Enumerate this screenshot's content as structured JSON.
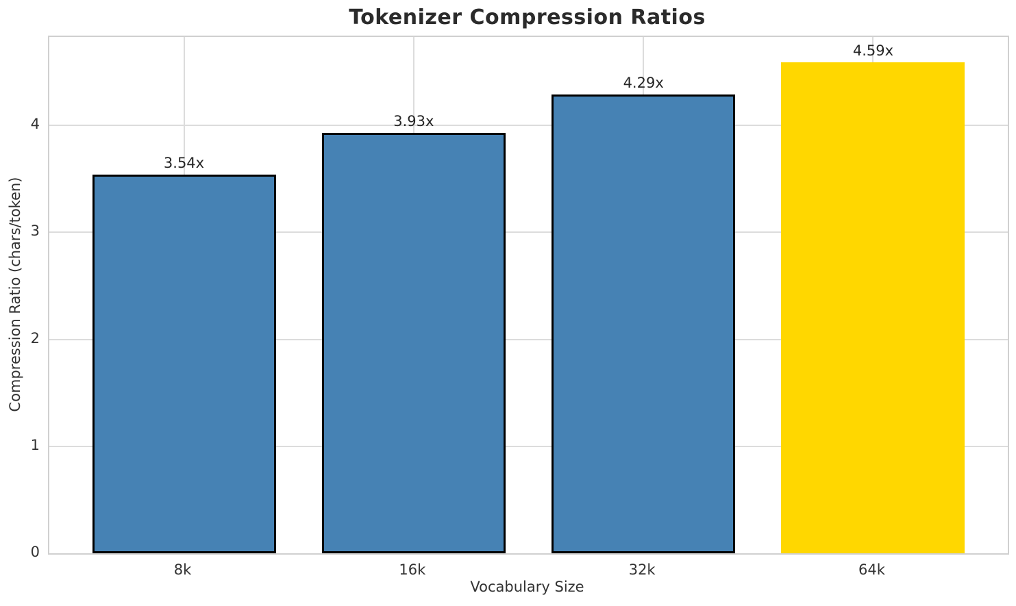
{
  "chart_data": {
    "type": "bar",
    "title": "Tokenizer Compression Ratios",
    "xlabel": "Vocabulary Size",
    "ylabel": "Compression Ratio (chars/token)",
    "categories": [
      "8k",
      "16k",
      "32k",
      "64k"
    ],
    "values": [
      3.54,
      3.93,
      4.29,
      4.59
    ],
    "bar_labels": [
      "3.54x",
      "3.93x",
      "4.29x",
      "4.59x"
    ],
    "yticks": [
      0,
      1,
      2,
      3,
      4
    ],
    "ylim": [
      0,
      4.826
    ],
    "grid": true,
    "legend": "none",
    "bar_colors": [
      "#4682B4",
      "#4682B4",
      "#4682B4",
      "#FFD700"
    ],
    "bar_edge_colors": [
      "#000000",
      "#000000",
      "#000000",
      "none"
    ],
    "highlight_index": 3,
    "grid_color": "#dcdcdc",
    "spine_color": "#d0d0d0",
    "text_color": "#333333",
    "title_color": "#2b2b2b"
  }
}
